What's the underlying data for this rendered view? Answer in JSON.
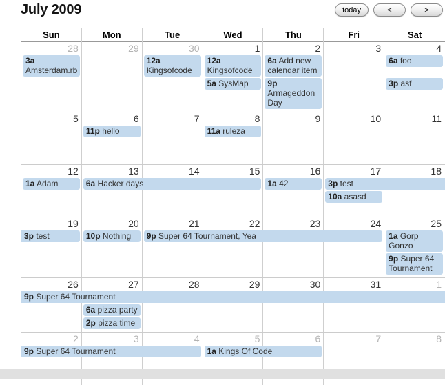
{
  "page": {
    "title": "July 2009"
  },
  "toolbar": {
    "today_label": "today",
    "prev_label": "<",
    "next_label": ">"
  },
  "calendar": {
    "weekday_headers": [
      "Sun",
      "Mon",
      "Tue",
      "Wed",
      "Thu",
      "Fri",
      "Sat"
    ],
    "colors": {
      "event_background": "#C3D9ED",
      "event_text": "#333333",
      "grid_border": "#CCCCCC",
      "current_month_day": "#333333",
      "other_month_day": "#B3B3B3",
      "bottom_strip": "#E0E0E0"
    },
    "weeks": [
      {
        "day_numbers": [
          {
            "n": "28",
            "other": true
          },
          {
            "n": "29",
            "other": true
          },
          {
            "n": "30",
            "other": true
          },
          {
            "n": "1"
          },
          {
            "n": "2"
          },
          {
            "n": "3"
          },
          {
            "n": "4"
          }
        ],
        "events": [
          {
            "time": "3a",
            "title": "Amsterdam.rb",
            "day": 1,
            "span": 1,
            "slot": 1
          },
          {
            "time": "12a",
            "title": "Kingsofcode",
            "day": 3,
            "span": 1,
            "slot": 1
          },
          {
            "time": "12a",
            "title": "Kingsofcode",
            "day": 4,
            "span": 1,
            "slot": 1
          },
          {
            "time": "6a",
            "title": "Add new calendar item",
            "day": 5,
            "span": 1,
            "slot": 1
          },
          {
            "time": "6a",
            "title": "foo",
            "day": 7,
            "span": 1,
            "slot": 1
          },
          {
            "time": "5a",
            "title": "SysMap",
            "day": 4,
            "span": 1,
            "slot": 2
          },
          {
            "time": "9p",
            "title": "Armageddon Day",
            "day": 5,
            "span": 1,
            "slot": 2
          },
          {
            "time": "3p",
            "title": "asf",
            "day": 7,
            "span": 1,
            "slot": 2
          }
        ]
      },
      {
        "day_numbers": [
          {
            "n": "5"
          },
          {
            "n": "6"
          },
          {
            "n": "7"
          },
          {
            "n": "8"
          },
          {
            "n": "9"
          },
          {
            "n": "10"
          },
          {
            "n": "11"
          }
        ],
        "events": [
          {
            "time": "11p",
            "title": "hello",
            "day": 2,
            "span": 1,
            "slot": 1
          },
          {
            "time": "11a",
            "title": "ruleza",
            "day": 4,
            "span": 1,
            "slot": 1
          }
        ]
      },
      {
        "day_numbers": [
          {
            "n": "12"
          },
          {
            "n": "13"
          },
          {
            "n": "14"
          },
          {
            "n": "15"
          },
          {
            "n": "16"
          },
          {
            "n": "17"
          },
          {
            "n": "18"
          }
        ],
        "events": [
          {
            "time": "1a",
            "title": "Adam",
            "day": 1,
            "span": 1,
            "slot": 1
          },
          {
            "time": "6a",
            "title": "Hacker days",
            "day": 2,
            "span": 3,
            "slot": 1
          },
          {
            "time": "1a",
            "title": "42",
            "day": 5,
            "span": 1,
            "slot": 1
          },
          {
            "time": "3p",
            "title": "test",
            "day": 6,
            "span": 2,
            "slot": 1,
            "continues_right": true
          },
          {
            "time": "10a",
            "title": "asasd",
            "day": 6,
            "span": 1,
            "slot": 2
          }
        ]
      },
      {
        "day_numbers": [
          {
            "n": "19"
          },
          {
            "n": "20"
          },
          {
            "n": "21"
          },
          {
            "n": "22"
          },
          {
            "n": "23"
          },
          {
            "n": "24"
          },
          {
            "n": "25"
          }
        ],
        "events": [
          {
            "time": "3p",
            "title": "test",
            "day": 1,
            "span": 1,
            "slot": 1,
            "continues_left": true
          },
          {
            "time": "10p",
            "title": "Nothing",
            "day": 2,
            "span": 1,
            "slot": 1
          },
          {
            "time": "9p",
            "title": "Super 64 Tournament, Yea",
            "day": 3,
            "span": 4,
            "slot": 1
          },
          {
            "time": "1a",
            "title": "Gorp Gonzo",
            "day": 7,
            "span": 1,
            "slot": 1
          },
          {
            "time": "9p",
            "title": "Super 64 Tournament",
            "day": 7,
            "span": 1,
            "slot": 2
          }
        ]
      },
      {
        "day_numbers": [
          {
            "n": "26"
          },
          {
            "n": "27"
          },
          {
            "n": "28"
          },
          {
            "n": "29"
          },
          {
            "n": "30"
          },
          {
            "n": "31"
          },
          {
            "n": "1",
            "other": true
          }
        ],
        "events": [
          {
            "time": "9p",
            "title": "Super 64 Tournament",
            "day": 1,
            "span": 7,
            "slot": 1,
            "continues_left": true,
            "continues_right": true
          },
          {
            "time": "6a",
            "title": "pizza party",
            "day": 2,
            "span": 1,
            "slot": 2
          },
          {
            "time": "2p",
            "title": "pizza time",
            "day": 2,
            "span": 1,
            "slot": 3
          }
        ]
      },
      {
        "day_numbers": [
          {
            "n": "2",
            "other": true
          },
          {
            "n": "3",
            "other": true
          },
          {
            "n": "4",
            "other": true
          },
          {
            "n": "5",
            "other": true
          },
          {
            "n": "6",
            "other": true
          },
          {
            "n": "7",
            "other": true
          },
          {
            "n": "8",
            "other": true
          }
        ],
        "events": [
          {
            "time": "9p",
            "title": "Super 64 Tournament",
            "day": 1,
            "span": 3,
            "slot": 1,
            "continues_left": true
          },
          {
            "time": "1a",
            "title": "Kings Of Code",
            "day": 4,
            "span": 2,
            "slot": 1
          }
        ]
      }
    ]
  }
}
